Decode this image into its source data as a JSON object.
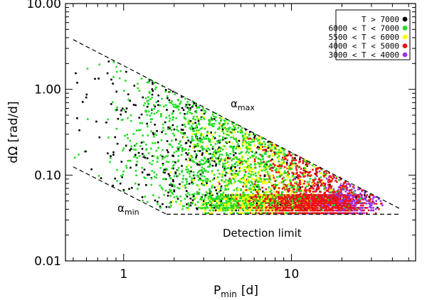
{
  "chart_data": {
    "type": "scatter",
    "title": "",
    "xlabel": "P_min [d]",
    "xlabel_main": "P",
    "xlabel_sub": "min",
    "xlabel_unit": "[d]",
    "ylabel": "dΩ [rad/d]",
    "x_scale": "log",
    "y_scale": "log",
    "xlim": [
      0.45,
      55
    ],
    "ylim": [
      0.01,
      10
    ],
    "x_ticks": [
      {
        "value": 1,
        "label": "1"
      },
      {
        "value": 10,
        "label": "10"
      }
    ],
    "y_ticks": [
      {
        "value": 0.01,
        "label": "0.01"
      },
      {
        "value": 0.1,
        "label": "0.10"
      },
      {
        "value": 1,
        "label": "1.00"
      },
      {
        "value": 10,
        "label": "10.00"
      }
    ],
    "legend": {
      "position": "top-right",
      "entries": [
        {
          "label": "T > 7000",
          "color": "#000000"
        },
        {
          "label": "6000 < T < 7000",
          "color": "#22dd22"
        },
        {
          "label": "5500 < T < 6000",
          "color": "#ffff00"
        },
        {
          "label": "4000 < T < 5000",
          "color": "#ee1111"
        },
        {
          "label": "3000 < T < 4000",
          "color": "#9933ee"
        }
      ]
    },
    "boundary_lines": [
      {
        "name": "alpha-max",
        "points": [
          [
            0.5,
            3.8
          ],
          [
            45,
            0.04
          ]
        ],
        "style": "dashed"
      },
      {
        "name": "alpha-min",
        "points": [
          [
            0.5,
            0.125
          ],
          [
            1.8,
            0.035
          ]
        ],
        "style": "dashed"
      },
      {
        "name": "detection-limit",
        "points": [
          [
            1.8,
            0.035
          ],
          [
            45,
            0.035
          ]
        ],
        "style": "dashed"
      }
    ],
    "annotations": [
      {
        "name": "alpha-max-label",
        "symbol": "α",
        "sub": "max",
        "at": [
          10,
          0.9
        ]
      },
      {
        "name": "alpha-min-label",
        "symbol": "α",
        "sub": "min",
        "at": [
          1.0,
          0.042
        ]
      },
      {
        "name": "detection-limit-label",
        "text": "Detection limit",
        "at": [
          6,
          0.025
        ]
      }
    ],
    "series_summary": [
      {
        "name": "T > 7000",
        "color": "#000000",
        "count": 520,
        "period_range": [
          0.5,
          35
        ],
        "domega_range": [
          0.04,
          3.8
        ]
      },
      {
        "name": "6000 < T < 7000",
        "color": "#22dd22",
        "count": 1500,
        "period_range": [
          0.5,
          30
        ],
        "domega_range": [
          0.04,
          3.5
        ]
      },
      {
        "name": "5500 < T < 6000",
        "color": "#ffff00",
        "count": 950,
        "period_range": [
          1.5,
          30
        ],
        "domega_range": [
          0.04,
          0.6
        ]
      },
      {
        "name": "4000 < T < 5000",
        "color": "#ee1111",
        "count": 1500,
        "period_range": [
          3,
          35
        ],
        "domega_range": [
          0.04,
          0.3
        ]
      },
      {
        "name": "3000 < T < 4000",
        "color": "#9933ee",
        "count": 550,
        "period_range": [
          8,
          35
        ],
        "domega_range": [
          0.04,
          0.12
        ]
      }
    ]
  }
}
